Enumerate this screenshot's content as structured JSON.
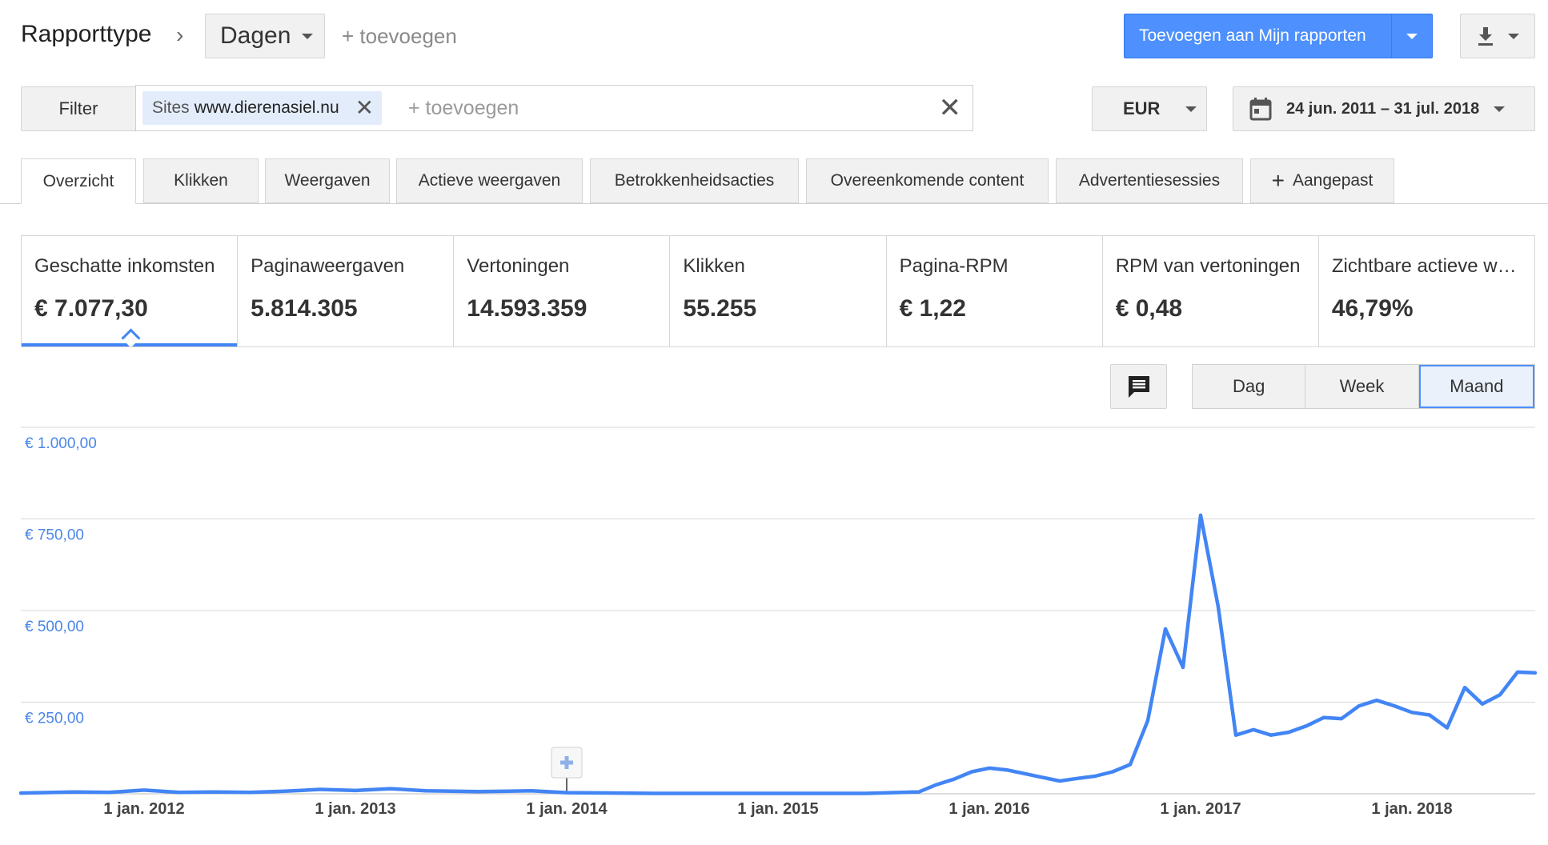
{
  "header": {
    "title": "Rapporttype",
    "chevron": "›",
    "dimension_label": "Dagen",
    "add_label": "+ toevoegen",
    "primary_button": "Toevoegen aan Mijn rapporten"
  },
  "filter": {
    "button": "Filter",
    "chip_prefix": "Sites",
    "chip_value": "www.dierenasiel.nu",
    "add_placeholder": "+ toevoegen",
    "currency": "EUR",
    "date_range": "24 jun. 2011 – 31 jul. 2018"
  },
  "tabs": [
    {
      "label": "Overzicht",
      "active": true
    },
    {
      "label": "Klikken"
    },
    {
      "label": "Weergaven"
    },
    {
      "label": "Actieve weergaven"
    },
    {
      "label": "Betrokkenheidsacties"
    },
    {
      "label": "Overeenkomende content"
    },
    {
      "label": "Advertentiesessies"
    },
    {
      "label": "Aangepast"
    }
  ],
  "scorecards": [
    {
      "title": "Geschatte inkomsten",
      "value": "€ 7.077,30",
      "active": true
    },
    {
      "title": "Paginaweergaven",
      "value": "5.814.305"
    },
    {
      "title": "Vertoningen",
      "value": "14.593.359"
    },
    {
      "title": "Klikken",
      "value": "55.255"
    },
    {
      "title": "Pagina-RPM",
      "value": "€ 1,22"
    },
    {
      "title": "RPM van vertoningen",
      "value": "€ 0,48"
    },
    {
      "title": "Zichtbare actieve weergaven",
      "value": "46,79%"
    }
  ],
  "granularity": {
    "options": [
      "Dag",
      "Week",
      "Maand"
    ],
    "selected": "Maand"
  },
  "icons": {
    "download": "download-icon",
    "calendar": "calendar-icon",
    "comment": "comment-icon",
    "annotation": "annotation-plus-icon"
  },
  "colors": {
    "accent": "#4285f4",
    "primary_button": "#4d90fe"
  },
  "chart_data": {
    "type": "line",
    "title": "",
    "xlabel": "",
    "ylabel": "",
    "ylim": [
      0,
      1000
    ],
    "yticks": [
      {
        "value": 250,
        "label": "€ 250,00"
      },
      {
        "value": 500,
        "label": "€ 500,00"
      },
      {
        "value": 750,
        "label": "€ 750,00"
      },
      {
        "value": 1000,
        "label": "€ 1.000,00"
      }
    ],
    "xlim": [
      "2011-06",
      "2018-07"
    ],
    "xticks": [
      {
        "x": "2012-01",
        "label": "1 jan. 2012"
      },
      {
        "x": "2013-01",
        "label": "1 jan. 2013"
      },
      {
        "x": "2014-01",
        "label": "1 jan. 2014"
      },
      {
        "x": "2015-01",
        "label": "1 jan. 2015"
      },
      {
        "x": "2016-01",
        "label": "1 jan. 2016"
      },
      {
        "x": "2017-01",
        "label": "1 jan. 2017"
      },
      {
        "x": "2018-01",
        "label": "1 jan. 2018"
      }
    ],
    "annotation_marker_x": "2014-01",
    "series": [
      {
        "values": [
          {
            "x": "2011-06",
            "y": 2
          },
          {
            "x": "2011-09",
            "y": 5
          },
          {
            "x": "2011-11",
            "y": 4
          },
          {
            "x": "2012-01",
            "y": 10
          },
          {
            "x": "2012-03",
            "y": 4
          },
          {
            "x": "2012-05",
            "y": 5
          },
          {
            "x": "2012-07",
            "y": 4
          },
          {
            "x": "2012-09",
            "y": 7
          },
          {
            "x": "2012-11",
            "y": 12
          },
          {
            "x": "2013-01",
            "y": 9
          },
          {
            "x": "2013-03",
            "y": 14
          },
          {
            "x": "2013-05",
            "y": 8
          },
          {
            "x": "2013-08",
            "y": 6
          },
          {
            "x": "2013-11",
            "y": 8
          },
          {
            "x": "2014-01",
            "y": 3
          },
          {
            "x": "2014-06",
            "y": 1
          },
          {
            "x": "2015-01",
            "y": 1
          },
          {
            "x": "2015-06",
            "y": 1
          },
          {
            "x": "2015-09",
            "y": 5
          },
          {
            "x": "2015-10",
            "y": 25
          },
          {
            "x": "2015-11",
            "y": 40
          },
          {
            "x": "2015-12",
            "y": 60
          },
          {
            "x": "2016-01",
            "y": 70
          },
          {
            "x": "2016-02",
            "y": 65
          },
          {
            "x": "2016-03",
            "y": 55
          },
          {
            "x": "2016-04",
            "y": 45
          },
          {
            "x": "2016-05",
            "y": 35
          },
          {
            "x": "2016-06",
            "y": 42
          },
          {
            "x": "2016-07",
            "y": 48
          },
          {
            "x": "2016-08",
            "y": 60
          },
          {
            "x": "2016-09",
            "y": 80
          },
          {
            "x": "2016-10",
            "y": 200
          },
          {
            "x": "2016-11",
            "y": 450
          },
          {
            "x": "2016-12",
            "y": 345
          },
          {
            "x": "2017-01",
            "y": 760
          },
          {
            "x": "2017-02",
            "y": 510
          },
          {
            "x": "2017-03",
            "y": 160
          },
          {
            "x": "2017-04",
            "y": 175
          },
          {
            "x": "2017-05",
            "y": 160
          },
          {
            "x": "2017-06",
            "y": 168
          },
          {
            "x": "2017-07",
            "y": 185
          },
          {
            "x": "2017-08",
            "y": 208
          },
          {
            "x": "2017-09",
            "y": 205
          },
          {
            "x": "2017-10",
            "y": 240
          },
          {
            "x": "2017-11",
            "y": 255
          },
          {
            "x": "2017-12",
            "y": 240
          },
          {
            "x": "2018-01",
            "y": 222
          },
          {
            "x": "2018-02",
            "y": 215
          },
          {
            "x": "2018-03",
            "y": 180
          },
          {
            "x": "2018-04",
            "y": 290
          },
          {
            "x": "2018-05",
            "y": 245
          },
          {
            "x": "2018-06",
            "y": 270
          },
          {
            "x": "2018-07",
            "y": 332
          },
          {
            "x": "2018-08",
            "y": 330
          }
        ]
      }
    ],
    "grid": true,
    "legend": "none"
  }
}
